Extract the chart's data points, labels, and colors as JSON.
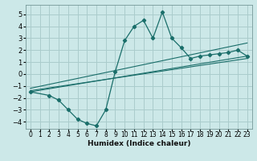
{
  "xlabel": "Humidex (Indice chaleur)",
  "bg_color": "#cce8e8",
  "grid_color": "#aacccc",
  "line_color": "#1a6e6a",
  "xlim": [
    -0.5,
    23.5
  ],
  "ylim": [
    -4.6,
    5.8
  ],
  "yticks": [
    -4,
    -3,
    -2,
    -1,
    0,
    1,
    2,
    3,
    4,
    5
  ],
  "xticks": [
    0,
    1,
    2,
    3,
    4,
    5,
    6,
    7,
    8,
    9,
    10,
    11,
    12,
    13,
    14,
    15,
    16,
    17,
    18,
    19,
    20,
    21,
    22,
    23
  ],
  "wavy_x": [
    0,
    2,
    3,
    4,
    5,
    6,
    7,
    8,
    9,
    10,
    11,
    12,
    13,
    14,
    15,
    16,
    17,
    18,
    19,
    20,
    21,
    22,
    23
  ],
  "wavy_y": [
    -1.5,
    -1.8,
    -2.2,
    -3.0,
    -3.8,
    -4.15,
    -4.35,
    -3.0,
    0.2,
    2.8,
    4.0,
    4.5,
    3.0,
    5.2,
    3.0,
    2.2,
    1.3,
    1.5,
    1.6,
    1.7,
    1.8,
    2.0,
    1.5
  ],
  "line1_x": [
    0,
    23
  ],
  "line1_y": [
    -1.5,
    1.5
  ],
  "line2_x": [
    0,
    23
  ],
  "line2_y": [
    -1.4,
    1.3
  ],
  "line3_x": [
    0,
    23
  ],
  "line3_y": [
    -1.2,
    2.6
  ],
  "xlabel_fontsize": 6.5,
  "tick_fontsize": 5.5
}
